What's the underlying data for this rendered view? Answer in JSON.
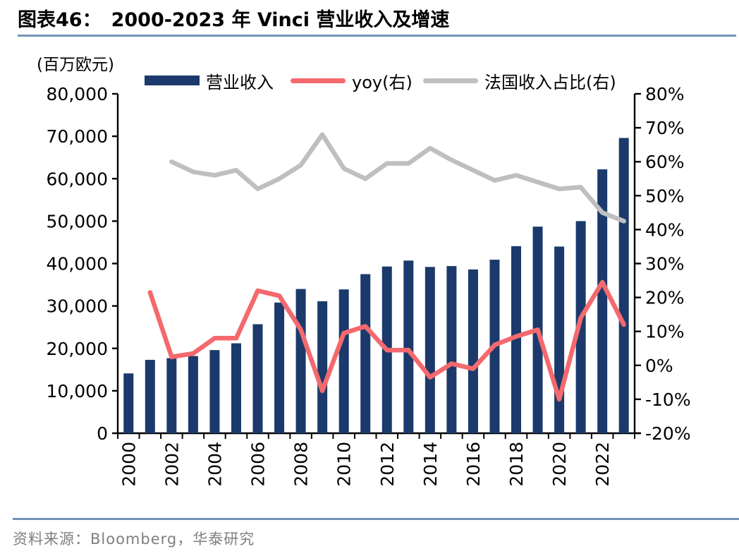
{
  "header": {
    "figure_label": "图表46：",
    "figure_title": "2000-2023 年 Vinci 营业收入及增速"
  },
  "footer": {
    "source_text": "资料来源：Bloomberg，华泰研究"
  },
  "colors": {
    "bar": "#1b3a6b",
    "yoy_line": "#f4696d",
    "france_line": "#bfbfbf",
    "rule": "#7293b8",
    "axis": "#000000",
    "source_text": "#7f7f7f"
  },
  "legend": {
    "revenue": "营业收入",
    "yoy": "yoy(右)",
    "france": "法国收入占比(右)"
  },
  "chart_data": {
    "type": "bar",
    "subtype": "combo-bar-line",
    "title": "2000-2023 年 Vinci 营业收入及增速",
    "categories": [
      "2000",
      "2001",
      "2002",
      "2003",
      "2004",
      "2005",
      "2006",
      "2007",
      "2008",
      "2009",
      "2010",
      "2011",
      "2012",
      "2013",
      "2014",
      "2015",
      "2016",
      "2017",
      "2018",
      "2019",
      "2020",
      "2021",
      "2022",
      "2023"
    ],
    "x_tick_label_step": 2,
    "grid": false,
    "legend_position": "top",
    "left_axis": {
      "unit_label": "(百万欧元)",
      "min": 0,
      "max": 80000,
      "step": 10000,
      "tick_labels": [
        "0",
        "10,000",
        "20,000",
        "30,000",
        "40,000",
        "50,000",
        "60,000",
        "70,000",
        "80,000"
      ]
    },
    "right_axis": {
      "min": -20,
      "max": 80,
      "step": 10,
      "tick_labels": [
        "-20%",
        "-10%",
        "0%",
        "10%",
        "20%",
        "30%",
        "40%",
        "50%",
        "60%",
        "70%",
        "80%"
      ]
    },
    "series": [
      {
        "name": "营业收入",
        "type": "bar",
        "axis": "left",
        "unit": "百万欧元",
        "values": [
          14100,
          17300,
          17700,
          18200,
          19600,
          21200,
          25700,
          30800,
          34000,
          31100,
          33900,
          37500,
          39300,
          40700,
          39200,
          39400,
          38600,
          40900,
          44100,
          48700,
          44000,
          50000,
          62200,
          69600
        ]
      },
      {
        "name": "yoy(右)",
        "type": "line",
        "axis": "right",
        "unit": "%",
        "values": [
          null,
          21.5,
          2.5,
          3.5,
          8,
          8,
          22,
          20.5,
          10.5,
          -7.5,
          9.5,
          11.5,
          4.5,
          4.5,
          -3.5,
          0.5,
          -1,
          6,
          8.5,
          10.5,
          -10,
          14,
          24.5,
          12
        ]
      },
      {
        "name": "法国收入占比(右)",
        "type": "line",
        "axis": "right",
        "unit": "%",
        "values": [
          null,
          null,
          60,
          57,
          56,
          57.5,
          52,
          55,
          59,
          68,
          58,
          55,
          59.5,
          59.5,
          64,
          60.5,
          57.5,
          54.5,
          56,
          54,
          52,
          52.5,
          45,
          42.5
        ]
      }
    ]
  }
}
